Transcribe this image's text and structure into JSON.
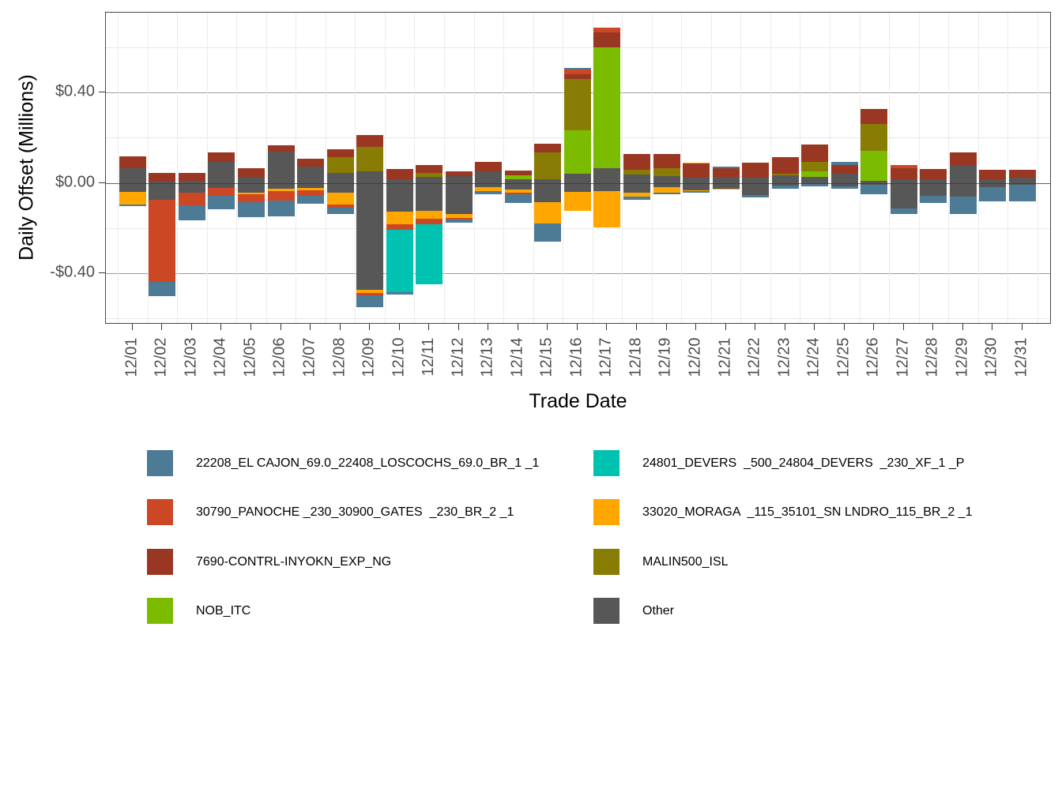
{
  "y_axis": {
    "title": "Daily Offset (Millions)",
    "tick_labels": [
      "$0.40",
      "$0.00",
      "-$0.40"
    ],
    "tick_values": [
      0.4,
      0.0,
      -0.4
    ],
    "minor_values": [
      0.6,
      0.2,
      -0.2,
      -0.6
    ]
  },
  "x_axis": {
    "title": "Trade Date"
  },
  "colors": {
    "EL": "#4d7a95",
    "DV": "#00c2b1",
    "PN": "#cc4824",
    "MG": "#ffa600",
    "IN": "#993723",
    "ML": "#887c05",
    "NB": "#7cbc00",
    "OT": "#575757"
  },
  "legend": {
    "entries": [
      {
        "key": "EL",
        "label": "22208_EL CAJON_69.0_22408_LOSCOCHS_69.0_BR_1 _1"
      },
      {
        "key": "DV",
        "label": "24801_DEVERS  _500_24804_DEVERS  _230_XF_1 _P"
      },
      {
        "key": "PN",
        "label": "30790_PANOCHE _230_30900_GATES  _230_BR_2 _1"
      },
      {
        "key": "MG",
        "label": "33020_MORAGA  _115_35101_SN LNDRO_115_BR_2 _1"
      },
      {
        "key": "IN",
        "label": "7690-CONTRL-INYOKN_EXP_NG"
      },
      {
        "key": "ML",
        "label": "MALIN500_ISL"
      },
      {
        "key": "NB",
        "label": "NOB_ITC"
      },
      {
        "key": "OT",
        "label": "Other"
      }
    ]
  },
  "chart_data": {
    "type": "bar",
    "stacked": true,
    "title": "",
    "xlabel": "Trade Date",
    "ylabel": "Daily Offset (Millions)",
    "unit": "USD millions",
    "ylim": [
      -0.63,
      0.75
    ],
    "grid": true,
    "legend_position": "bottom",
    "categories": [
      "12/01",
      "12/02",
      "12/03",
      "12/04",
      "12/05",
      "12/06",
      "12/07",
      "12/08",
      "12/09",
      "12/10",
      "12/11",
      "12/12",
      "12/13",
      "12/14",
      "12/15",
      "12/16",
      "12/17",
      "12/18",
      "12/19",
      "12/20",
      "12/21",
      "12/22",
      "12/23",
      "12/24",
      "12/25",
      "12/26",
      "12/27",
      "12/28",
      "12/29",
      "12/30",
      "12/31"
    ],
    "bars": [
      {
        "date": "12/01",
        "segments": [
          {
            "key": "IN",
            "from": 0.118,
            "to": 0.064
          },
          {
            "key": "OT",
            "from": 0.064,
            "to": -0.041
          },
          {
            "key": "MG",
            "from": -0.041,
            "to": -0.096
          },
          {
            "key": "EL",
            "from": -0.096,
            "to": -0.104
          }
        ]
      },
      {
        "date": "12/02",
        "segments": [
          {
            "key": "IN",
            "from": 0.044,
            "to": 0.004
          },
          {
            "key": "OT",
            "from": 0.004,
            "to": -0.075
          },
          {
            "key": "PN",
            "from": -0.075,
            "to": -0.437
          },
          {
            "key": "EL",
            "from": -0.437,
            "to": -0.502
          }
        ]
      },
      {
        "date": "12/03",
        "segments": [
          {
            "key": "IN",
            "from": 0.044,
            "to": 0.009
          },
          {
            "key": "OT",
            "from": 0.009,
            "to": -0.044
          },
          {
            "key": "PN",
            "from": -0.044,
            "to": -0.099
          },
          {
            "key": "EL",
            "from": -0.099,
            "to": -0.166
          }
        ]
      },
      {
        "date": "12/04",
        "segments": [
          {
            "key": "IN",
            "from": 0.133,
            "to": 0.093
          },
          {
            "key": "OT",
            "from": 0.093,
            "to": -0.021
          },
          {
            "key": "PN",
            "from": -0.021,
            "to": -0.058
          },
          {
            "key": "EL",
            "from": -0.058,
            "to": -0.118
          }
        ]
      },
      {
        "date": "12/05",
        "segments": [
          {
            "key": "IN",
            "from": 0.064,
            "to": 0.025
          },
          {
            "key": "OT",
            "from": 0.025,
            "to": -0.043
          },
          {
            "key": "MG",
            "from": -0.043,
            "to": -0.05
          },
          {
            "key": "PN",
            "from": -0.05,
            "to": -0.084
          },
          {
            "key": "EL",
            "from": -0.084,
            "to": -0.153
          }
        ]
      },
      {
        "date": "12/06",
        "segments": [
          {
            "key": "IN",
            "from": 0.165,
            "to": 0.139
          },
          {
            "key": "OT",
            "from": 0.139,
            "to": -0.025
          },
          {
            "key": "MG",
            "from": -0.025,
            "to": -0.035
          },
          {
            "key": "PN",
            "from": -0.035,
            "to": -0.079
          },
          {
            "key": "EL",
            "from": -0.079,
            "to": -0.149
          }
        ]
      },
      {
        "date": "12/07",
        "segments": [
          {
            "key": "IN",
            "from": 0.105,
            "to": 0.07
          },
          {
            "key": "OT",
            "from": 0.07,
            "to": -0.023
          },
          {
            "key": "MG",
            "from": -0.023,
            "to": -0.033
          },
          {
            "key": "PN",
            "from": -0.033,
            "to": -0.058
          },
          {
            "key": "EL",
            "from": -0.058,
            "to": -0.091
          }
        ]
      },
      {
        "date": "12/08",
        "segments": [
          {
            "key": "IN",
            "from": 0.147,
            "to": 0.114
          },
          {
            "key": "ML",
            "from": 0.114,
            "to": 0.044
          },
          {
            "key": "OT",
            "from": 0.044,
            "to": -0.044
          },
          {
            "key": "MG",
            "from": -0.044,
            "to": -0.095
          },
          {
            "key": "PN",
            "from": -0.095,
            "to": -0.11
          },
          {
            "key": "EL",
            "from": -0.11,
            "to": -0.137
          }
        ]
      },
      {
        "date": "12/09",
        "segments": [
          {
            "key": "IN",
            "from": 0.211,
            "to": 0.16
          },
          {
            "key": "ML",
            "from": 0.16,
            "to": 0.052
          },
          {
            "key": "OT",
            "from": 0.052,
            "to": -0.473
          },
          {
            "key": "MG",
            "from": -0.473,
            "to": -0.487
          },
          {
            "key": "PN",
            "from": -0.487,
            "to": -0.499
          },
          {
            "key": "EL",
            "from": -0.499,
            "to": -0.551
          }
        ]
      },
      {
        "date": "12/10",
        "segments": [
          {
            "key": "IN",
            "from": 0.06,
            "to": 0.017
          },
          {
            "key": "OT",
            "from": 0.017,
            "to": -0.128
          },
          {
            "key": "MG",
            "from": -0.128,
            "to": -0.185
          },
          {
            "key": "PN",
            "from": -0.185,
            "to": -0.209
          },
          {
            "key": "DV",
            "from": -0.209,
            "to": -0.485
          },
          {
            "key": "EL",
            "from": -0.485,
            "to": -0.496
          }
        ]
      },
      {
        "date": "12/11",
        "segments": [
          {
            "key": "IN",
            "from": 0.079,
            "to": 0.044
          },
          {
            "key": "ML",
            "from": 0.044,
            "to": 0.025
          },
          {
            "key": "OT",
            "from": 0.025,
            "to": -0.125
          },
          {
            "key": "MG",
            "from": -0.125,
            "to": -0.16
          },
          {
            "key": "PN",
            "from": -0.16,
            "to": -0.183
          },
          {
            "key": "DV",
            "from": -0.183,
            "to": -0.45
          }
        ]
      },
      {
        "date": "12/12",
        "segments": [
          {
            "key": "IN",
            "from": 0.049,
            "to": 0.029
          },
          {
            "key": "OT",
            "from": 0.029,
            "to": -0.139
          },
          {
            "key": "MG",
            "from": -0.139,
            "to": -0.154
          },
          {
            "key": "PN",
            "from": -0.154,
            "to": -0.164
          },
          {
            "key": "EL",
            "from": -0.164,
            "to": -0.176
          }
        ]
      },
      {
        "date": "12/13",
        "segments": [
          {
            "key": "IN",
            "from": 0.093,
            "to": 0.052
          },
          {
            "key": "OT",
            "from": 0.052,
            "to": -0.02
          },
          {
            "key": "MG",
            "from": -0.02,
            "to": -0.037
          },
          {
            "key": "EL",
            "from": -0.037,
            "to": -0.05
          }
        ]
      },
      {
        "date": "12/14",
        "segments": [
          {
            "key": "IN",
            "from": 0.055,
            "to": 0.032
          },
          {
            "key": "NB",
            "from": 0.032,
            "to": 0.015
          },
          {
            "key": "OT",
            "from": 0.015,
            "to": -0.029
          },
          {
            "key": "MG",
            "from": -0.029,
            "to": -0.043
          },
          {
            "key": "PN",
            "from": -0.043,
            "to": -0.052
          },
          {
            "key": "EL",
            "from": -0.052,
            "to": -0.089
          }
        ]
      },
      {
        "date": "12/15",
        "segments": [
          {
            "key": "IN",
            "from": 0.174,
            "to": 0.133
          },
          {
            "key": "ML",
            "from": 0.133,
            "to": 0.015
          },
          {
            "key": "OT",
            "from": 0.015,
            "to": -0.084
          },
          {
            "key": "MG",
            "from": -0.084,
            "to": -0.18
          },
          {
            "key": "EL",
            "from": -0.18,
            "to": -0.262
          }
        ]
      },
      {
        "date": "12/16",
        "segments": [
          {
            "key": "EL",
            "from": 0.508,
            "to": 0.5
          },
          {
            "key": "PN",
            "from": 0.5,
            "to": 0.48
          },
          {
            "key": "IN",
            "from": 0.48,
            "to": 0.46
          },
          {
            "key": "ML",
            "from": 0.46,
            "to": 0.232
          },
          {
            "key": "NB",
            "from": 0.232,
            "to": 0.04
          },
          {
            "key": "OT",
            "from": 0.04,
            "to": -0.04
          },
          {
            "key": "MG",
            "from": -0.04,
            "to": -0.124
          }
        ]
      },
      {
        "date": "12/17",
        "segments": [
          {
            "key": "PN",
            "from": 0.685,
            "to": 0.665
          },
          {
            "key": "IN",
            "from": 0.665,
            "to": 0.6
          },
          {
            "key": "NB",
            "from": 0.6,
            "to": 0.065
          },
          {
            "key": "OT",
            "from": 0.065,
            "to": -0.035
          },
          {
            "key": "MG",
            "from": -0.035,
            "to": -0.197
          }
        ]
      },
      {
        "date": "12/18",
        "segments": [
          {
            "key": "IN",
            "from": 0.128,
            "to": 0.058
          },
          {
            "key": "ML",
            "from": 0.058,
            "to": 0.038
          },
          {
            "key": "OT",
            "from": 0.038,
            "to": -0.043
          },
          {
            "key": "MG",
            "from": -0.043,
            "to": -0.062
          },
          {
            "key": "EL",
            "from": -0.062,
            "to": -0.076
          }
        ]
      },
      {
        "date": "12/19",
        "segments": [
          {
            "key": "IN",
            "from": 0.126,
            "to": 0.065
          },
          {
            "key": "ML",
            "from": 0.065,
            "to": 0.031
          },
          {
            "key": "OT",
            "from": 0.031,
            "to": -0.018
          },
          {
            "key": "MG",
            "from": -0.018,
            "to": -0.043
          },
          {
            "key": "EL",
            "from": -0.043,
            "to": -0.051
          }
        ]
      },
      {
        "date": "12/20",
        "segments": [
          {
            "key": "MG",
            "from": 0.089,
            "to": 0.084
          },
          {
            "key": "IN",
            "from": 0.084,
            "to": 0.023
          },
          {
            "key": "OT",
            "from": 0.023,
            "to": -0.032
          },
          {
            "key": "MG",
            "from": -0.032,
            "to": -0.038
          },
          {
            "key": "EL",
            "from": -0.038,
            "to": -0.044
          }
        ]
      },
      {
        "date": "12/21",
        "segments": [
          {
            "key": "EL",
            "from": 0.07,
            "to": 0.063
          },
          {
            "key": "IN",
            "from": 0.063,
            "to": 0.025
          },
          {
            "key": "OT",
            "from": 0.025,
            "to": -0.025
          },
          {
            "key": "MG",
            "from": -0.025,
            "to": -0.031
          }
        ]
      },
      {
        "date": "12/22",
        "segments": [
          {
            "key": "IN",
            "from": 0.09,
            "to": 0.023
          },
          {
            "key": "OT",
            "from": 0.023,
            "to": -0.055
          },
          {
            "key": "EL",
            "from": -0.055,
            "to": -0.066
          }
        ]
      },
      {
        "date": "12/23",
        "segments": [
          {
            "key": "IN",
            "from": 0.114,
            "to": 0.041
          },
          {
            "key": "ML",
            "from": 0.041,
            "to": 0.032
          },
          {
            "key": "OT",
            "from": 0.032,
            "to": -0.012
          },
          {
            "key": "EL",
            "from": -0.012,
            "to": -0.025
          }
        ]
      },
      {
        "date": "12/24",
        "segments": [
          {
            "key": "IN",
            "from": 0.168,
            "to": 0.093
          },
          {
            "key": "ML",
            "from": 0.093,
            "to": 0.052
          },
          {
            "key": "NB",
            "from": 0.052,
            "to": 0.025
          },
          {
            "key": "OT",
            "from": 0.025,
            "to": -0.006
          },
          {
            "key": "EL",
            "from": -0.006,
            "to": -0.015
          }
        ]
      },
      {
        "date": "12/25",
        "segments": [
          {
            "key": "EL",
            "from": 0.093,
            "to": 0.079
          },
          {
            "key": "IN",
            "from": 0.079,
            "to": 0.041
          },
          {
            "key": "OT",
            "from": 0.041,
            "to": -0.015
          },
          {
            "key": "EL",
            "from": -0.015,
            "to": -0.025
          }
        ]
      },
      {
        "date": "12/26",
        "segments": [
          {
            "key": "IN",
            "from": 0.328,
            "to": 0.261
          },
          {
            "key": "ML",
            "from": 0.261,
            "to": 0.143
          },
          {
            "key": "NB",
            "from": 0.143,
            "to": 0.009
          },
          {
            "key": "OT",
            "from": 0.009,
            "to": -0.008
          },
          {
            "key": "EL",
            "from": -0.008,
            "to": -0.052
          }
        ]
      },
      {
        "date": "12/27",
        "segments": [
          {
            "key": "PN",
            "from": 0.079,
            "to": 0.064
          },
          {
            "key": "IN",
            "from": 0.064,
            "to": 0.014
          },
          {
            "key": "OT",
            "from": 0.014,
            "to": -0.112
          },
          {
            "key": "EL",
            "from": -0.112,
            "to": -0.139
          }
        ]
      },
      {
        "date": "12/28",
        "segments": [
          {
            "key": "IN",
            "from": 0.06,
            "to": 0.014
          },
          {
            "key": "OT",
            "from": 0.014,
            "to": -0.058
          },
          {
            "key": "EL",
            "from": -0.058,
            "to": -0.09
          }
        ]
      },
      {
        "date": "12/29",
        "segments": [
          {
            "key": "IN",
            "from": 0.136,
            "to": 0.075
          },
          {
            "key": "OT",
            "from": 0.075,
            "to": -0.061
          },
          {
            "key": "EL",
            "from": -0.061,
            "to": -0.139
          }
        ]
      },
      {
        "date": "12/30",
        "segments": [
          {
            "key": "IN",
            "from": 0.056,
            "to": 0.016
          },
          {
            "key": "OT",
            "from": 0.016,
            "to": -0.018
          },
          {
            "key": "EL",
            "from": -0.018,
            "to": -0.083
          }
        ]
      },
      {
        "date": "12/31",
        "segments": [
          {
            "key": "IN",
            "from": 0.056,
            "to": 0.021
          },
          {
            "key": "OT",
            "from": 0.021,
            "to": -0.01
          },
          {
            "key": "EL",
            "from": -0.01,
            "to": -0.083
          }
        ]
      }
    ]
  }
}
